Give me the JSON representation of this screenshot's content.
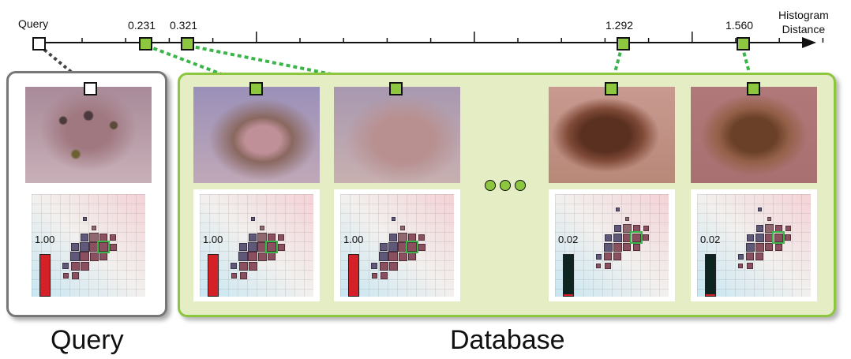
{
  "axis": {
    "title": [
      "Histogram",
      "Distance"
    ],
    "query_label": "Query",
    "markers": [
      {
        "label": "0.231",
        "value": 0.231
      },
      {
        "label": "0.321",
        "value": 0.321
      },
      {
        "label": "1.292",
        "value": 1.292
      },
      {
        "label": "1.560",
        "value": 1.56
      }
    ]
  },
  "query": {
    "caption": "Query",
    "bar_label": "1.00",
    "bar_fraction": 1.0
  },
  "database": {
    "caption": "Database",
    "items": [
      {
        "bar_label": "1.00",
        "bar_fraction": 1.0
      },
      {
        "bar_label": "1.00",
        "bar_fraction": 1.0
      },
      {
        "bar_label": "0.02",
        "bar_fraction": 0.02
      },
      {
        "bar_label": "0.02",
        "bar_fraction": 0.02
      }
    ]
  },
  "colors": {
    "match": "#8dc63f",
    "panel": "#e5edc4",
    "bar": "#d42027",
    "link": "#3ab54a"
  }
}
